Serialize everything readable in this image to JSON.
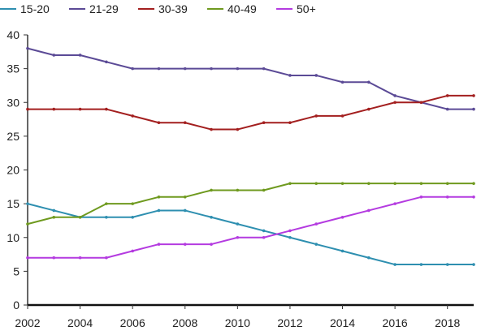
{
  "chart_data": {
    "type": "line",
    "title": "",
    "xlabel": "",
    "ylabel": "",
    "x": [
      2002,
      2003,
      2004,
      2005,
      2006,
      2007,
      2008,
      2009,
      2010,
      2011,
      2012,
      2013,
      2014,
      2015,
      2016,
      2017,
      2018,
      2019
    ],
    "xlim": [
      2002,
      2019
    ],
    "ylim": [
      0,
      40
    ],
    "x_ticks": [
      "2002",
      "2004",
      "2006",
      "2008",
      "2010",
      "2012",
      "2014",
      "2016",
      "2018"
    ],
    "y_ticks": [
      "0",
      "5",
      "10",
      "15",
      "20",
      "25",
      "30",
      "35",
      "40"
    ],
    "grid": false,
    "legend_position": "top-left",
    "series": [
      {
        "name": "15-20",
        "color": "#2e8fb0",
        "values": [
          15,
          14,
          13,
          13,
          13,
          14,
          14,
          13,
          12,
          11,
          10,
          9,
          8,
          7,
          6,
          6,
          6,
          6
        ]
      },
      {
        "name": "21-29",
        "color": "#5b4a96",
        "values": [
          38,
          37,
          37,
          36,
          35,
          35,
          35,
          35,
          35,
          35,
          34,
          34,
          33,
          33,
          31,
          30,
          29,
          29
        ]
      },
      {
        "name": "30-39",
        "color": "#a31f1f",
        "values": [
          29,
          29,
          29,
          29,
          28,
          27,
          27,
          26,
          26,
          27,
          27,
          28,
          28,
          29,
          30,
          30,
          31,
          31
        ]
      },
      {
        "name": "40-49",
        "color": "#6f9a1f",
        "values": [
          12,
          13,
          13,
          15,
          15,
          16,
          16,
          17,
          17,
          17,
          18,
          18,
          18,
          18,
          18,
          18,
          18,
          18
        ]
      },
      {
        "name": "50+",
        "color": "#b43be0",
        "values": [
          7,
          7,
          7,
          7,
          8,
          9,
          9,
          9,
          10,
          10,
          11,
          12,
          13,
          14,
          15,
          16,
          16,
          16
        ]
      }
    ]
  }
}
